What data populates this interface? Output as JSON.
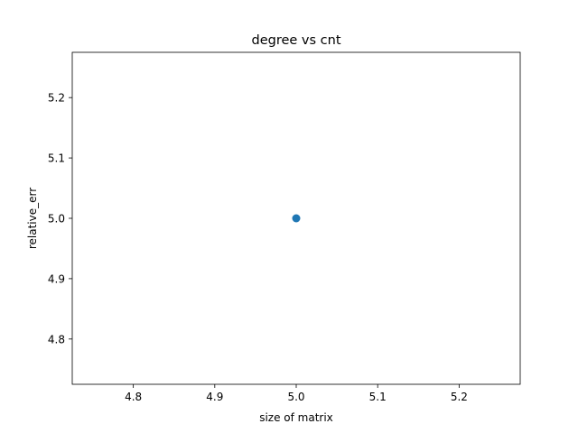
{
  "chart_data": {
    "type": "scatter",
    "title": "degree vs cnt",
    "xlabel": "size of matrix",
    "ylabel": "relative_err",
    "xlim": [
      4.725,
      5.275
    ],
    "ylim": [
      4.725,
      5.275
    ],
    "xticks": [
      4.8,
      4.9,
      5.0,
      5.1,
      5.2
    ],
    "xtick_labels": [
      "4.8",
      "4.9",
      "5.0",
      "5.1",
      "5.2"
    ],
    "yticks": [
      4.8,
      4.9,
      5.0,
      5.1,
      5.2
    ],
    "ytick_labels": [
      "4.8",
      "4.9",
      "5.0",
      "5.1",
      "5.2"
    ],
    "grid": false,
    "series": [
      {
        "color": "#1f77b4",
        "points": [
          {
            "x": 5.0,
            "y": 5.0
          }
        ]
      }
    ]
  }
}
